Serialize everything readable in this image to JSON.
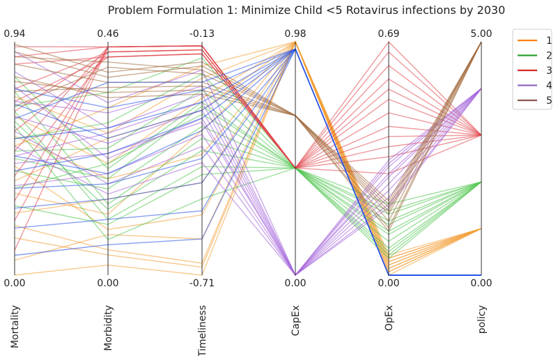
{
  "chart_data": {
    "type": "parallel_coordinates",
    "title": "Problem Formulation 1: Minimize Child <5 Rotavirus infections by 2030",
    "axes": [
      {
        "name": "Mortality",
        "min": 0.0,
        "max": 0.94,
        "min_label": "0.00",
        "max_label": "0.94"
      },
      {
        "name": "Morbidity",
        "min": 0.0,
        "max": 0.46,
        "min_label": "0.00",
        "max_label": "0.46"
      },
      {
        "name": "Timeliness",
        "min": -0.71,
        "max": -0.13,
        "min_label": "-0.71",
        "max_label": "-0.13"
      },
      {
        "name": "CapEx",
        "min": 0.0,
        "max": 0.98,
        "min_label": "0.00",
        "max_label": "0.98"
      },
      {
        "name": "OpEx",
        "min": 0.0,
        "max": 0.69,
        "min_label": "0.00",
        "max_label": "0.69"
      },
      {
        "name": "policy",
        "min": 0.0,
        "max": 5.0,
        "min_label": "0.00",
        "max_label": "5.00"
      }
    ],
    "legend": {
      "placement": "top-right",
      "entries": [
        {
          "label": "1",
          "color": "#ff7f0e"
        },
        {
          "label": "2",
          "color": "#2ca02c"
        },
        {
          "label": "3",
          "color": "#d62728"
        },
        {
          "label": "4",
          "color": "#9467bd"
        },
        {
          "label": "5",
          "color": "#8c564b"
        }
      ]
    },
    "series": [
      {
        "policy": "1",
        "color": "#f39c33",
        "lines": [
          [
            0.33,
            0.12,
            -0.35,
            0.98,
            0.04,
            1.0
          ],
          [
            0.2,
            0.05,
            -0.68,
            0.98,
            0.02,
            1.0
          ],
          [
            0.52,
            0.33,
            -0.19,
            0.98,
            0.05,
            1.0
          ],
          [
            0.06,
            0.08,
            -0.62,
            0.98,
            0.01,
            1.0
          ],
          [
            0.64,
            0.22,
            -0.27,
            0.98,
            0.03,
            1.0
          ],
          [
            0.44,
            0.09,
            -0.56,
            0.98,
            0.06,
            1.0
          ],
          [
            0.72,
            0.28,
            -0.22,
            0.98,
            0.04,
            1.0
          ],
          [
            0.25,
            0.15,
            -0.48,
            0.98,
            0.02,
            1.0
          ],
          [
            0.56,
            0.19,
            -0.41,
            0.98,
            0.05,
            1.0
          ],
          [
            0.15,
            0.04,
            -0.69,
            0.98,
            0.01,
            1.0
          ],
          [
            0.38,
            0.27,
            -0.3,
            0.98,
            0.03,
            1.0
          ],
          [
            0.0,
            0.02,
            -0.71,
            0.98,
            0.0,
            1.0
          ]
        ]
      },
      {
        "policy": "2",
        "color": "#4cc44c",
        "lines": [
          [
            0.68,
            0.36,
            -0.17,
            0.45,
            0.08,
            2.0
          ],
          [
            0.55,
            0.3,
            -0.21,
            0.45,
            0.12,
            2.0
          ],
          [
            0.8,
            0.21,
            -0.28,
            0.45,
            0.18,
            2.0
          ],
          [
            0.42,
            0.17,
            -0.34,
            0.45,
            0.06,
            2.0
          ],
          [
            0.62,
            0.13,
            -0.4,
            0.45,
            0.15,
            2.0
          ],
          [
            0.28,
            0.1,
            -0.46,
            0.45,
            0.1,
            2.0
          ],
          [
            0.5,
            0.25,
            -0.25,
            0.45,
            0.21,
            2.0
          ],
          [
            0.74,
            0.14,
            -0.37,
            0.45,
            0.07,
            2.0
          ],
          [
            0.35,
            0.22,
            -0.31,
            0.45,
            0.13,
            2.0
          ],
          [
            0.6,
            0.07,
            -0.52,
            0.45,
            0.16,
            2.0
          ],
          [
            0.47,
            0.19,
            -0.29,
            0.45,
            0.05,
            2.0
          ],
          [
            0.66,
            0.11,
            -0.44,
            0.45,
            0.19,
            2.0
          ]
        ]
      },
      {
        "policy": "3",
        "color": "#e0434b",
        "lines": [
          [
            0.92,
            0.45,
            -0.14,
            0.45,
            0.69,
            3.0
          ],
          [
            0.75,
            0.44,
            -0.15,
            0.45,
            0.62,
            3.0
          ],
          [
            0.5,
            0.45,
            -0.14,
            0.45,
            0.55,
            3.0
          ],
          [
            0.85,
            0.43,
            -0.16,
            0.45,
            0.48,
            3.0
          ],
          [
            0.3,
            0.45,
            -0.14,
            0.45,
            0.41,
            3.0
          ],
          [
            0.66,
            0.44,
            -0.15,
            0.45,
            0.35,
            3.0
          ],
          [
            0.1,
            0.45,
            -0.14,
            0.45,
            0.3,
            3.0
          ],
          [
            0.58,
            0.43,
            -0.16,
            0.45,
            0.66,
            3.0
          ],
          [
            0.88,
            0.45,
            -0.14,
            0.45,
            0.58,
            3.0
          ],
          [
            0.4,
            0.44,
            -0.15,
            0.45,
            0.52,
            3.0
          ],
          [
            0.22,
            0.45,
            -0.14,
            0.45,
            0.44,
            3.0
          ],
          [
            0.7,
            0.43,
            -0.16,
            0.45,
            0.38,
            3.0
          ]
        ]
      },
      {
        "policy": "4",
        "color": "#a361d8",
        "lines": [
          [
            0.7,
            0.32,
            -0.24,
            0.0,
            0.2,
            4.0
          ],
          [
            0.45,
            0.24,
            -0.33,
            0.0,
            0.27,
            4.0
          ],
          [
            0.58,
            0.18,
            -0.39,
            0.0,
            0.32,
            4.0
          ],
          [
            0.82,
            0.29,
            -0.26,
            0.0,
            0.23,
            4.0
          ],
          [
            0.36,
            0.2,
            -0.36,
            0.0,
            0.29,
            4.0
          ],
          [
            0.64,
            0.26,
            -0.3,
            0.0,
            0.34,
            4.0
          ],
          [
            0.52,
            0.16,
            -0.43,
            0.0,
            0.25,
            4.0
          ],
          [
            0.76,
            0.23,
            -0.32,
            0.0,
            0.3,
            4.0
          ],
          [
            0.48,
            0.28,
            -0.28,
            0.0,
            0.21,
            4.0
          ],
          [
            0.9,
            0.34,
            -0.2,
            0.0,
            0.33,
            4.0
          ]
        ]
      },
      {
        "policy": "5",
        "color": "#a0683b",
        "lines": [
          [
            0.88,
            0.42,
            -0.2,
            0.67,
            0.19,
            5.0
          ],
          [
            0.74,
            0.37,
            -0.24,
            0.67,
            0.14,
            5.0
          ],
          [
            0.93,
            0.4,
            -0.18,
            0.67,
            0.22,
            5.0
          ],
          [
            0.8,
            0.35,
            -0.26,
            0.67,
            0.16,
            5.0
          ],
          [
            0.68,
            0.41,
            -0.21,
            0.67,
            0.2,
            5.0
          ],
          [
            0.85,
            0.38,
            -0.23,
            0.67,
            0.13,
            5.0
          ],
          [
            0.78,
            0.36,
            -0.25,
            0.67,
            0.18,
            5.0
          ],
          [
            0.9,
            0.39,
            -0.19,
            0.67,
            0.21,
            5.0
          ]
        ]
      },
      {
        "policy": "0",
        "color": "#2550e6",
        "lines": [
          [
            0.63,
            0.38,
            -0.23,
            0.95,
            0.0,
            0.0
          ],
          [
            0.48,
            0.2,
            -0.35,
            0.95,
            0.0,
            0.0
          ],
          [
            0.27,
            0.15,
            -0.48,
            0.95,
            0.0,
            0.0
          ],
          [
            0.55,
            0.29,
            -0.28,
            0.95,
            0.0,
            0.0
          ],
          [
            0.19,
            0.11,
            -0.55,
            0.95,
            0.0,
            0.0
          ],
          [
            0.75,
            0.33,
            -0.25,
            0.95,
            0.0,
            0.0
          ],
          [
            0.08,
            0.06,
            -0.62,
            0.95,
            0.0,
            0.0
          ],
          [
            0.42,
            0.24,
            -0.32,
            0.95,
            0.0,
            0.0
          ],
          [
            0.69,
            0.27,
            -0.3,
            0.95,
            0.0,
            0.0
          ],
          [
            0.35,
            0.18,
            -0.42,
            0.95,
            0.0,
            0.0
          ]
        ]
      }
    ]
  }
}
